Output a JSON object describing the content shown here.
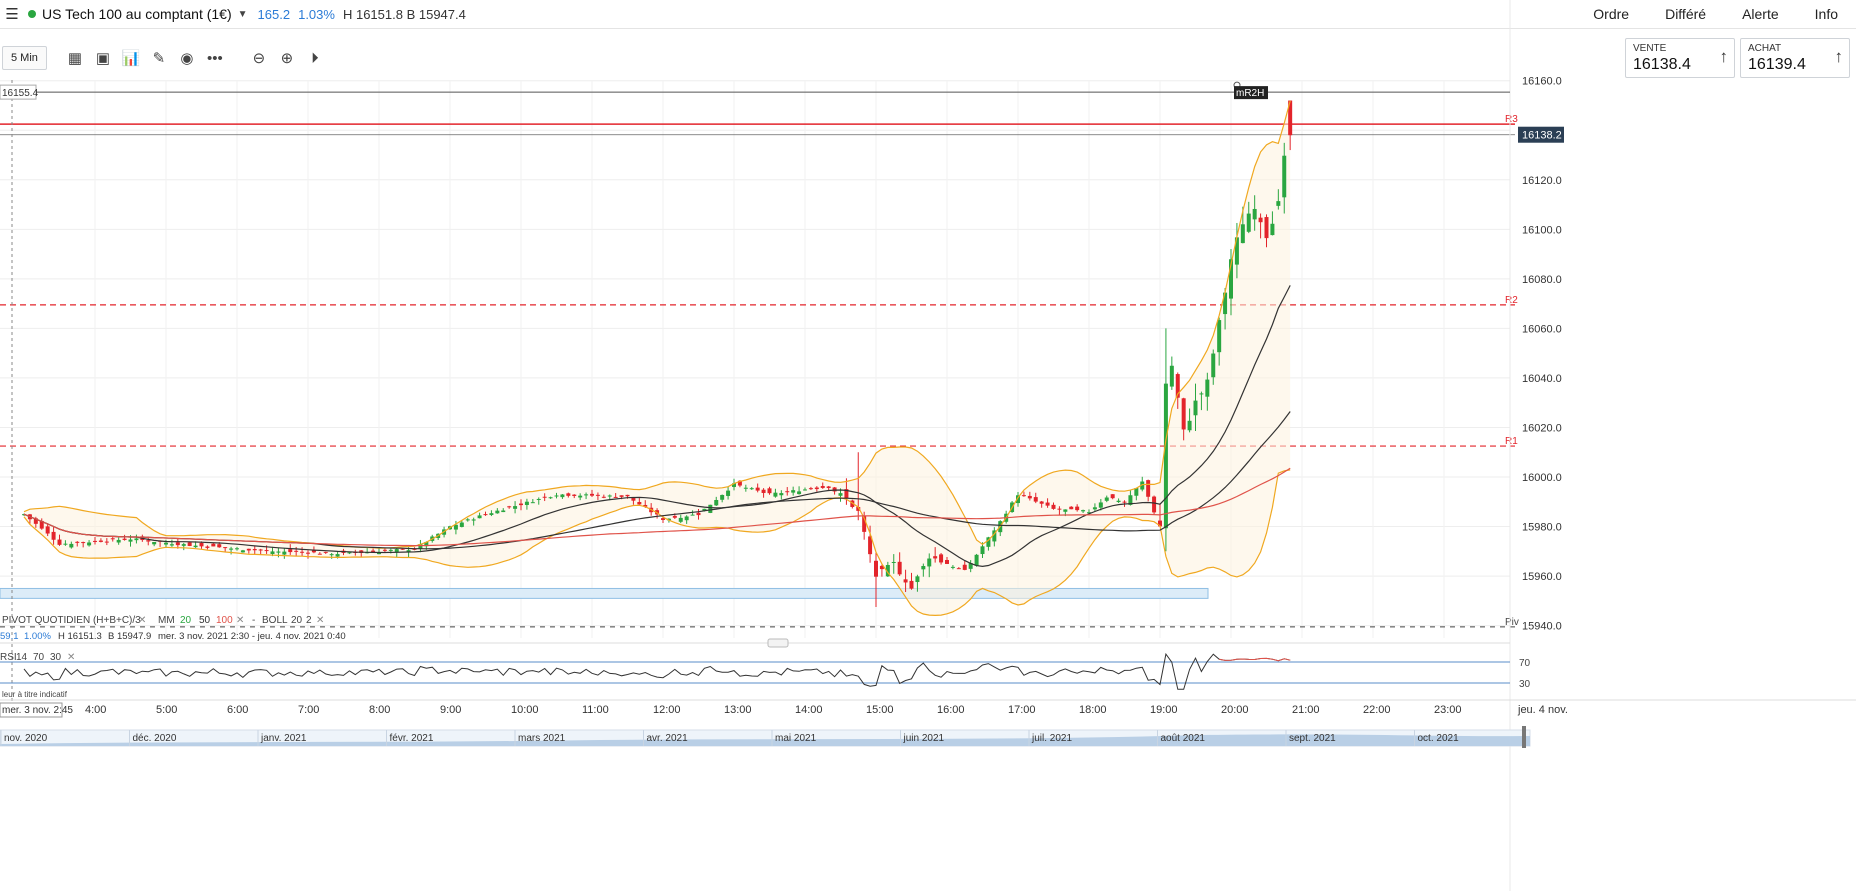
{
  "header": {
    "title": "US Tech 100 au comptant (1€)",
    "change": "165.2",
    "change_pct": "1.03%",
    "high_low": "H 16151.8 B 15947.4",
    "nav": [
      "Ordre",
      "Différé",
      "Alerte",
      "Info"
    ]
  },
  "toolbar": {
    "timeframe": "5 Min"
  },
  "quotes": {
    "sell_label": "VENTE",
    "sell_value": "16138.4",
    "buy_label": "ACHAT",
    "buy_value": "16139.4"
  },
  "chart_data": {
    "type": "candlestick",
    "instrument": "US Tech 100 au comptant (1€)",
    "interval": "5 Min",
    "ylim": [
      15935,
      16172
    ],
    "y_ticks": [
      "16160.0",
      "16140.0",
      "16120.0",
      "16100.0",
      "16080.0",
      "16060.0",
      "16040.0",
      "16020.0",
      "16000.0",
      "15980.0",
      "15960.0",
      "15940.0"
    ],
    "x_ticks": [
      "4:00",
      "5:00",
      "6:00",
      "7:00",
      "8:00",
      "9:00",
      "10:00",
      "11:00",
      "12:00",
      "13:00",
      "14:00",
      "15:00",
      "16:00",
      "17:00",
      "18:00",
      "19:00",
      "20:00",
      "21:00",
      "22:00",
      "23:00",
      "jeu. 4 nov."
    ],
    "x_cursor_label": "mer. 3 nov. 2:45",
    "last_price": "16138.2",
    "crosshair_price": "16155.4",
    "marker_label": "mR2H",
    "pivot_levels": [
      {
        "name": "R3",
        "value": 16142.5
      },
      {
        "name": "R2",
        "value": 16069.5
      },
      {
        "name": "R1",
        "value": 16012.5
      },
      {
        "name": "Piv",
        "value": 15939.5
      }
    ],
    "zone": {
      "from": 15951,
      "to": 15955
    },
    "anchors": {
      "time": [
        "3:00",
        "3:30",
        "4:30",
        "5:30",
        "6:30",
        "7:30",
        "8:30",
        "9:00",
        "9:30",
        "10:30",
        "11:30",
        "12:00",
        "12:30",
        "13:00",
        "13:30",
        "14:00",
        "14:20",
        "14:35",
        "14:45",
        "15:00",
        "15:15",
        "15:30",
        "15:45",
        "16:00",
        "16:15",
        "16:30",
        "16:45",
        "17:00",
        "17:15",
        "17:30",
        "18:00",
        "18:15",
        "18:30",
        "18:45",
        "19:00",
        "19:05",
        "19:10",
        "19:20",
        "19:30",
        "19:40",
        "19:50",
        "20:00",
        "20:10",
        "20:20",
        "20:30",
        "20:40",
        "20:45",
        "20:50"
      ],
      "close": [
        15985,
        15973,
        15975,
        15972,
        15970,
        15969,
        15971,
        15980,
        15985,
        15993,
        15992,
        15983,
        15985,
        15997,
        15993,
        15995,
        15996,
        15991,
        15986,
        15960,
        15965,
        15955,
        15968,
        15965,
        15962,
        15972,
        15982,
        15993,
        15990,
        15987,
        15986,
        15992,
        15990,
        15998,
        15980,
        16038,
        16045,
        16018,
        16030,
        16038,
        16062,
        16088,
        16103,
        16110,
        16098,
        16110,
        16128,
        16138
      ]
    },
    "indicators": {
      "pivot": "PIVOT  QUOTIDIEN  (H+B+C)/3",
      "ma": [
        "MM",
        "20",
        "50",
        "100"
      ],
      "boll": [
        "BOLL",
        "20",
        "2"
      ],
      "info": {
        "pct": "1.00%",
        "high": "H 16151.3",
        "low": "B 15947.9",
        "range": "mer. 3 nov. 2021 2:30 - jeu. 4 nov. 2021 0:40"
      },
      "rsi": {
        "label": "RSI",
        "params": [
          "14",
          "70",
          "30"
        ],
        "levels": [
          "70",
          "30"
        ]
      },
      "note": "leur à titre indicatif"
    },
    "navigator_labels": [
      "nov. 2020",
      "déc. 2020",
      "janv. 2021",
      "févr. 2021",
      "mars 2021",
      "avr. 2021",
      "mai 2021",
      "juin 2021",
      "juil. 2021",
      "août 2021",
      "sept. 2021",
      "oct. 2021"
    ]
  }
}
